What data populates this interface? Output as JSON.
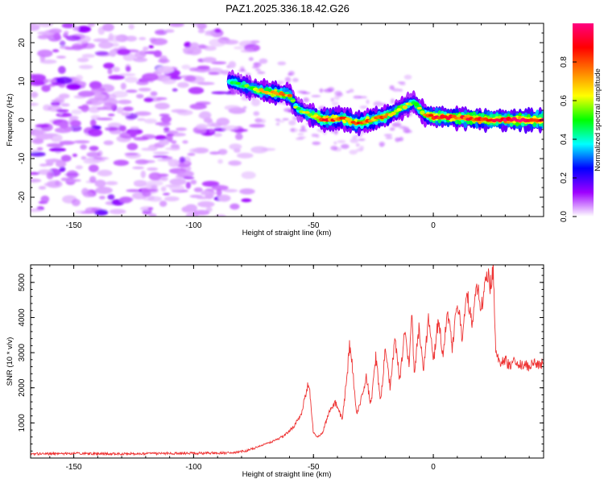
{
  "title": "PAZ1.2025.336.18.42.G26",
  "colors": {
    "snr_line": "#ee3333",
    "frame": "#000000",
    "background": "#ffffff"
  },
  "chart_data": [
    {
      "type": "heatmap",
      "xlabel": "Height of straight line (km)",
      "ylabel": "Frequency (Hz)",
      "xlim": [
        -168,
        46
      ],
      "ylim": [
        -25,
        25
      ],
      "xticks": [
        -150,
        -100,
        -50,
        0
      ],
      "yticks": [
        -20,
        -10,
        0,
        10,
        20
      ],
      "colorbar": {
        "label": "Normalized spectral amplitude",
        "range": [
          0,
          1
        ],
        "ticks": [
          "0.0",
          "0.2",
          "0.4",
          "0.6",
          "0.8"
        ],
        "tick_values": [
          0.0,
          0.2,
          0.4,
          0.6,
          0.8
        ],
        "colors": [
          "#ffffff",
          "#9e00ff",
          "#0000ff",
          "#00ffff",
          "#00ff00",
          "#ffff00",
          "#ff8000",
          "#ff0000",
          "#ff0080"
        ]
      },
      "ridge": {
        "description_points": [
          {
            "height": -85,
            "freq": 10,
            "amp": 0.45
          },
          {
            "height": -75,
            "freq": 8,
            "amp": 0.55
          },
          {
            "height": -67,
            "freq": 7,
            "amp": 0.75
          },
          {
            "height": -60,
            "freq": 6.5,
            "amp": 0.7
          },
          {
            "height": -57,
            "freq": 3,
            "amp": 0.5
          },
          {
            "height": -52,
            "freq": 1.5,
            "amp": 0.6
          },
          {
            "height": -45,
            "freq": 0,
            "amp": 0.85
          },
          {
            "height": -38,
            "freq": 0.5,
            "amp": 0.75
          },
          {
            "height": -32,
            "freq": -0.8,
            "amp": 0.8
          },
          {
            "height": -25,
            "freq": 0,
            "amp": 0.75
          },
          {
            "height": -18,
            "freq": 1.5,
            "amp": 0.7
          },
          {
            "height": -12,
            "freq": 3.5,
            "amp": 0.6
          },
          {
            "height": -8,
            "freq": 4.5,
            "amp": 0.55
          },
          {
            "height": -4,
            "freq": 1.5,
            "amp": 0.7
          },
          {
            "height": 0,
            "freq": 0.8,
            "amp": 0.85
          },
          {
            "height": 10,
            "freq": 0.6,
            "amp": 0.85
          },
          {
            "height": 20,
            "freq": 0.2,
            "amp": 0.9
          },
          {
            "height": 30,
            "freq": 0,
            "amp": 0.95
          },
          {
            "height": 46,
            "freq": 0,
            "amp": 0.95
          }
        ],
        "noise_region_height": [
          -168,
          -80
        ]
      }
    },
    {
      "type": "line",
      "xlabel": "Height of straight line (km)",
      "ylabel": "SNR (10 * v/v)",
      "xlim": [
        -168,
        46
      ],
      "ylim": [
        0,
        5500
      ],
      "xticks": [
        -150,
        -100,
        -50,
        0
      ],
      "yticks": [
        1000,
        2000,
        3000,
        4000,
        5000
      ],
      "series": [
        {
          "x": [
            -168,
            -150,
            -130,
            -110,
            -95,
            -85,
            -78,
            -72,
            -66,
            -62,
            -58,
            -55,
            -52,
            -50,
            -48,
            -46,
            -44,
            -41,
            -38,
            -36,
            -35,
            -34,
            -32,
            -30,
            -28,
            -26,
            -24,
            -22,
            -20,
            -18,
            -16,
            -14,
            -12,
            -10,
            -9,
            -8,
            -6,
            -4,
            -2,
            0,
            2,
            4,
            6,
            8,
            10,
            12,
            14,
            16,
            18,
            20,
            22,
            24,
            25,
            26,
            27,
            28,
            30,
            32,
            34,
            36,
            38,
            40,
            42,
            44,
            46
          ],
          "y": [
            120,
            130,
            120,
            130,
            140,
            150,
            200,
            350,
            500,
            650,
            900,
            1300,
            2200,
            700,
            600,
            750,
            1200,
            1600,
            1100,
            2300,
            3200,
            2800,
            1200,
            1700,
            2300,
            1500,
            2900,
            1600,
            3100,
            2000,
            3400,
            2200,
            3600,
            2600,
            4300,
            2400,
            3700,
            2500,
            4000,
            2700,
            3900,
            3000,
            4200,
            3100,
            4500,
            3400,
            4800,
            3800,
            5000,
            4200,
            5300,
            4900,
            5400,
            3000,
            2900,
            2700,
            2800,
            2600,
            2750,
            2650,
            2700,
            2600,
            2700,
            2650,
            2700
          ]
        }
      ]
    }
  ]
}
